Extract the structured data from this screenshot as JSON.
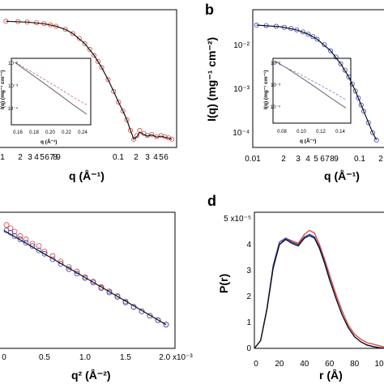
{
  "colors": {
    "red": "#d9443b",
    "blue": "#2f46b8",
    "black": "#111111"
  },
  "panels": {
    "b": {
      "label": "b"
    },
    "d": {
      "label": "d"
    }
  },
  "chart_data": [
    {
      "id": "a",
      "type": "scatter",
      "xscale": "log",
      "yscale": "log",
      "xlim": [
        0.01,
        0.7
      ],
      "ylim": [
        5e-05,
        0.05
      ],
      "xticks_major": [
        "1",
        "0.1"
      ],
      "xticks_minor": [
        "2",
        "3",
        "4",
        "5",
        "6",
        "7",
        "8",
        "9",
        "2",
        "3",
        "4",
        "5",
        "6"
      ],
      "xlabel": "q (Å⁻¹)",
      "series": [
        {
          "color": "red",
          "marker": "circle",
          "points": [
            [
              0.012,
              0.03
            ],
            [
              0.016,
              0.0295
            ],
            [
              0.02,
              0.0288
            ],
            [
              0.025,
              0.0278
            ],
            [
              0.03,
              0.0265
            ],
            [
              0.035,
              0.025
            ],
            [
              0.04,
              0.0233
            ],
            [
              0.05,
              0.0198
            ],
            [
              0.06,
              0.016
            ],
            [
              0.07,
              0.0125
            ],
            [
              0.08,
              0.0095
            ],
            [
              0.09,
              0.0071
            ],
            [
              0.1,
              0.0052
            ],
            [
              0.11,
              0.0038
            ],
            [
              0.12,
              0.0028
            ],
            [
              0.14,
              0.0015
            ],
            [
              0.16,
              0.00082
            ],
            [
              0.18,
              0.00047
            ],
            [
              0.2,
              0.0003
            ],
            [
              0.22,
              0.00019
            ],
            [
              0.24,
              0.00011
            ],
            [
              0.26,
              7e-05
            ],
            [
              0.28,
              8.5e-05
            ],
            [
              0.3,
              0.00011
            ],
            [
              0.33,
              9.5e-05
            ],
            [
              0.36,
              8.5e-05
            ],
            [
              0.4,
              9e-05
            ],
            [
              0.45,
              8e-05
            ],
            [
              0.5,
              8.5e-05
            ],
            [
              0.55,
              8e-05
            ],
            [
              0.6,
              7.5e-05
            ],
            [
              0.65,
              7e-05
            ]
          ]
        }
      ],
      "fit": [
        [
          0.012,
          0.03
        ],
        [
          0.02,
          0.0288
        ],
        [
          0.03,
          0.0265
        ],
        [
          0.04,
          0.0233
        ],
        [
          0.05,
          0.0198
        ],
        [
          0.06,
          0.016
        ],
        [
          0.08,
          0.0095
        ],
        [
          0.1,
          0.0052
        ],
        [
          0.12,
          0.0028
        ],
        [
          0.14,
          0.0015
        ],
        [
          0.16,
          0.00082
        ],
        [
          0.18,
          0.00047
        ],
        [
          0.2,
          0.0003
        ],
        [
          0.22,
          0.00019
        ],
        [
          0.24,
          0.00011
        ],
        [
          0.26,
          7e-05
        ],
        [
          0.28,
          8e-05
        ],
        [
          0.3,
          0.0001
        ],
        [
          0.33,
          9e-05
        ],
        [
          0.36,
          8.2e-05
        ],
        [
          0.4,
          8.8e-05
        ],
        [
          0.45,
          7.8e-05
        ],
        [
          0.5,
          8.2e-05
        ],
        [
          0.6,
          7.4e-05
        ],
        [
          0.65,
          7e-05
        ]
      ],
      "inset": {
        "xlim": [
          0.15,
          0.25
        ],
        "yscale": "log",
        "ylim": [
          1e-05,
          0.01
        ],
        "xticks": [
          "0.16",
          "0.18",
          "0.20",
          "0.22",
          "0.24"
        ],
        "yticks": [
          "10⁻²",
          "10⁻³",
          "10⁻⁴"
        ],
        "xlabel": "q (Å⁻¹)",
        "ylabel": "I(q) (mg⁻¹ cm⁻¹)",
        "solid": [
          [
            0.155,
            0.0063
          ],
          [
            0.17,
            0.0026
          ],
          [
            0.19,
            0.0008
          ],
          [
            0.21,
            0.00024
          ],
          [
            0.23,
            7e-05
          ],
          [
            0.245,
            3e-05
          ]
        ],
        "dashed": [
          [
            0.155,
            0.0066
          ],
          [
            0.17,
            0.0032
          ],
          [
            0.19,
            0.0012
          ],
          [
            0.21,
            0.00045
          ],
          [
            0.23,
            0.00016
          ],
          [
            0.245,
            8e-05
          ]
        ]
      }
    },
    {
      "id": "b",
      "type": "scatter",
      "xscale": "log",
      "yscale": "log",
      "xlim": [
        0.01,
        0.3
      ],
      "ylim": [
        5e-05,
        0.06
      ],
      "xticks_major": [
        "0.01",
        "0.1"
      ],
      "xticks_minor": [
        "2",
        "3",
        "4",
        "5",
        "6",
        "7",
        "8",
        "9",
        "2"
      ],
      "yticks": [
        "10⁻²",
        "10⁻³",
        "10⁻⁴"
      ],
      "xlabel": "q (Å⁻¹)",
      "ylabel": "I(q) (mg⁻¹ cm⁻²)",
      "series": [
        {
          "color": "blue",
          "marker": "circle",
          "points": [
            [
              0.011,
              0.029
            ],
            [
              0.014,
              0.0283
            ],
            [
              0.018,
              0.0272
            ],
            [
              0.022,
              0.0258
            ],
            [
              0.026,
              0.0243
            ],
            [
              0.03,
              0.0226
            ],
            [
              0.035,
              0.0203
            ],
            [
              0.04,
              0.018
            ],
            [
              0.045,
              0.0158
            ],
            [
              0.05,
              0.0138
            ],
            [
              0.06,
              0.0103
            ],
            [
              0.07,
              0.0075
            ],
            [
              0.08,
              0.0054
            ],
            [
              0.09,
              0.0038
            ],
            [
              0.1,
              0.0027
            ],
            [
              0.11,
              0.0019
            ],
            [
              0.12,
              0.0013
            ],
            [
              0.13,
              0.0009
            ],
            [
              0.14,
              0.00062
            ],
            [
              0.15,
              0.00043
            ],
            [
              0.16,
              0.00031
            ],
            [
              0.18,
              0.00017
            ],
            [
              0.2,
              0.0001
            ],
            [
              0.22,
              6.8e-05
            ]
          ]
        }
      ],
      "fit": [
        [
          0.011,
          0.029
        ],
        [
          0.02,
          0.0266
        ],
        [
          0.03,
          0.0226
        ],
        [
          0.04,
          0.018
        ],
        [
          0.05,
          0.0138
        ],
        [
          0.07,
          0.0075
        ],
        [
          0.09,
          0.0038
        ],
        [
          0.11,
          0.0019
        ],
        [
          0.13,
          0.0009
        ],
        [
          0.15,
          0.00043
        ],
        [
          0.18,
          0.00017
        ],
        [
          0.2,
          0.0001
        ],
        [
          0.22,
          6.8e-05
        ]
      ],
      "inset": {
        "xlim": [
          0.07,
          0.15
        ],
        "yscale": "log",
        "ylim": [
          1e-05,
          0.01
        ],
        "xticks": [
          "0.08",
          "0.10",
          "0.12",
          "0.14"
        ],
        "yticks": [
          "10⁻²",
          "10⁻³",
          "10⁻⁴"
        ],
        "xlabel": "q (Å⁻¹)",
        "ylabel": "I(q) (mg⁻¹ cm⁻¹)",
        "solid": [
          [
            0.072,
            0.0075
          ],
          [
            0.085,
            0.0033
          ],
          [
            0.1,
            0.0012
          ],
          [
            0.115,
            0.00042
          ],
          [
            0.13,
            0.00014
          ],
          [
            0.145,
            5e-05
          ]
        ],
        "dashed": [
          [
            0.072,
            0.0065
          ],
          [
            0.085,
            0.0035
          ],
          [
            0.1,
            0.0016
          ],
          [
            0.115,
            0.0007
          ],
          [
            0.13,
            0.0003
          ],
          [
            0.145,
            0.00012
          ]
        ]
      }
    },
    {
      "id": "c",
      "type": "scatter",
      "xlim": [
        0,
        0.00205
      ],
      "xticks": [
        "0.5",
        "1.0",
        "1.5",
        "2.0 x10⁻³"
      ],
      "xlabel": "q² (Å⁻²)",
      "series": [
        {
          "color": "red",
          "marker": "circle",
          "points": [
            [
              3e-05,
              1.0
            ],
            [
              8e-05,
              0.985
            ],
            [
              0.00013,
              0.97
            ],
            [
              0.0002,
              0.95
            ],
            [
              0.00027,
              0.935
            ],
            [
              0.00035,
              0.915
            ],
            [
              0.00043,
              0.905
            ],
            [
              0.0005,
              0.88
            ],
            [
              0.0006,
              0.86
            ],
            [
              0.0007,
              0.835
            ],
            [
              0.0008,
              0.81
            ],
            [
              0.0009,
              0.79
            ],
            [
              0.001,
              0.765
            ],
            [
              0.0011,
              0.745
            ],
            [
              0.0012,
              0.72
            ],
            [
              0.0013,
              0.7
            ],
            [
              0.0014,
              0.68
            ],
            [
              0.0015,
              0.655
            ],
            [
              0.0016,
              0.63
            ],
            [
              0.0017,
              0.61
            ],
            [
              0.0018,
              0.59
            ],
            [
              0.0019,
              0.57
            ],
            [
              0.002,
              0.55
            ]
          ]
        },
        {
          "color": "blue",
          "marker": "circle",
          "points": [
            [
              3e-05,
              0.975
            ],
            [
              8e-05,
              0.965
            ],
            [
              0.00013,
              0.95
            ],
            [
              0.0002,
              0.935
            ],
            [
              0.00027,
              0.92
            ],
            [
              0.00035,
              0.905
            ],
            [
              0.00043,
              0.885
            ],
            [
              0.0005,
              0.87
            ],
            [
              0.0006,
              0.845
            ],
            [
              0.0007,
              0.825
            ],
            [
              0.0008,
              0.8
            ],
            [
              0.0009,
              0.78
            ],
            [
              0.001,
              0.76
            ],
            [
              0.0011,
              0.74
            ],
            [
              0.0012,
              0.715
            ],
            [
              0.0013,
              0.695
            ],
            [
              0.0014,
              0.675
            ],
            [
              0.0015,
              0.65
            ],
            [
              0.0016,
              0.63
            ],
            [
              0.0017,
              0.61
            ],
            [
              0.0018,
              0.59
            ],
            [
              0.0019,
              0.57
            ],
            [
              0.002,
              0.55
            ]
          ]
        }
      ],
      "fit": [
        [
          0,
          0.975
        ],
        [
          0.002,
          0.55
        ]
      ],
      "ylim": [
        0.45,
        1.05
      ]
    },
    {
      "id": "d",
      "type": "line",
      "xlim": [
        0,
        110
      ],
      "ylim": [
        0,
        5e-05
      ],
      "xticks": [
        "0",
        "20",
        "40",
        "60",
        "80",
        "10"
      ],
      "yticks": [
        "5 x10⁻⁵",
        "4",
        "3",
        "2",
        "1",
        "0"
      ],
      "xlabel": "r (Å)",
      "ylabel": "P(r)",
      "series": [
        {
          "color": "red",
          "points": [
            [
              0,
              0
            ],
            [
              5,
              3e-06
            ],
            [
              10,
              1.5e-05
            ],
            [
              15,
              3.1e-05
            ],
            [
              20,
              4e-05
            ],
            [
              25,
              4.25e-05
            ],
            [
              30,
              4.15e-05
            ],
            [
              35,
              4.05e-05
            ],
            [
              40,
              4.4e-05
            ],
            [
              44,
              4.55e-05
            ],
            [
              48,
              4.45e-05
            ],
            [
              52,
              4e-05
            ],
            [
              56,
              3.45e-05
            ],
            [
              60,
              2.85e-05
            ],
            [
              65,
              2.1e-05
            ],
            [
              70,
              1.45e-05
            ],
            [
              75,
              9e-06
            ],
            [
              80,
              5.5e-06
            ],
            [
              85,
              3.5e-06
            ],
            [
              90,
              2.2e-06
            ],
            [
              95,
              1.6e-06
            ],
            [
              100,
              1e-06
            ],
            [
              105,
              4e-07
            ],
            [
              110,
              0
            ]
          ]
        },
        {
          "color": "blue",
          "points": [
            [
              0,
              0
            ],
            [
              5,
              3e-06
            ],
            [
              10,
              1.55e-05
            ],
            [
              15,
              3.2e-05
            ],
            [
              20,
              4.1e-05
            ],
            [
              25,
              4.25e-05
            ],
            [
              30,
              4.1e-05
            ],
            [
              35,
              4e-05
            ],
            [
              40,
              4.3e-05
            ],
            [
              44,
              4.4e-05
            ],
            [
              48,
              4.3e-05
            ],
            [
              52,
              3.9e-05
            ],
            [
              56,
              3.35e-05
            ],
            [
              60,
              2.7e-05
            ],
            [
              65,
              1.95e-05
            ],
            [
              70,
              1.3e-05
            ],
            [
              75,
              8e-06
            ],
            [
              80,
              4.5e-06
            ],
            [
              85,
              2.5e-06
            ],
            [
              90,
              1.2e-06
            ],
            [
              95,
              6e-07
            ],
            [
              100,
              2e-07
            ],
            [
              105,
              0
            ]
          ]
        },
        {
          "color": "black",
          "points": [
            [
              0,
              0
            ],
            [
              5,
              3e-06
            ],
            [
              10,
              1.5e-05
            ],
            [
              15,
              3.1e-05
            ],
            [
              20,
              4e-05
            ],
            [
              25,
              4.2e-05
            ],
            [
              30,
              4.05e-05
            ],
            [
              35,
              3.95e-05
            ],
            [
              40,
              4.25e-05
            ],
            [
              44,
              4.35e-05
            ],
            [
              48,
              4.25e-05
            ],
            [
              52,
              3.85e-05
            ],
            [
              56,
              3.3e-05
            ],
            [
              60,
              2.65e-05
            ],
            [
              65,
              1.95e-05
            ],
            [
              70,
              1.3e-05
            ],
            [
              75,
              8e-06
            ],
            [
              80,
              4.5e-06
            ],
            [
              85,
              2.5e-06
            ],
            [
              90,
              1.3e-06
            ],
            [
              95,
              7e-07
            ],
            [
              100,
              3e-07
            ],
            [
              105,
              0
            ]
          ]
        }
      ]
    }
  ]
}
